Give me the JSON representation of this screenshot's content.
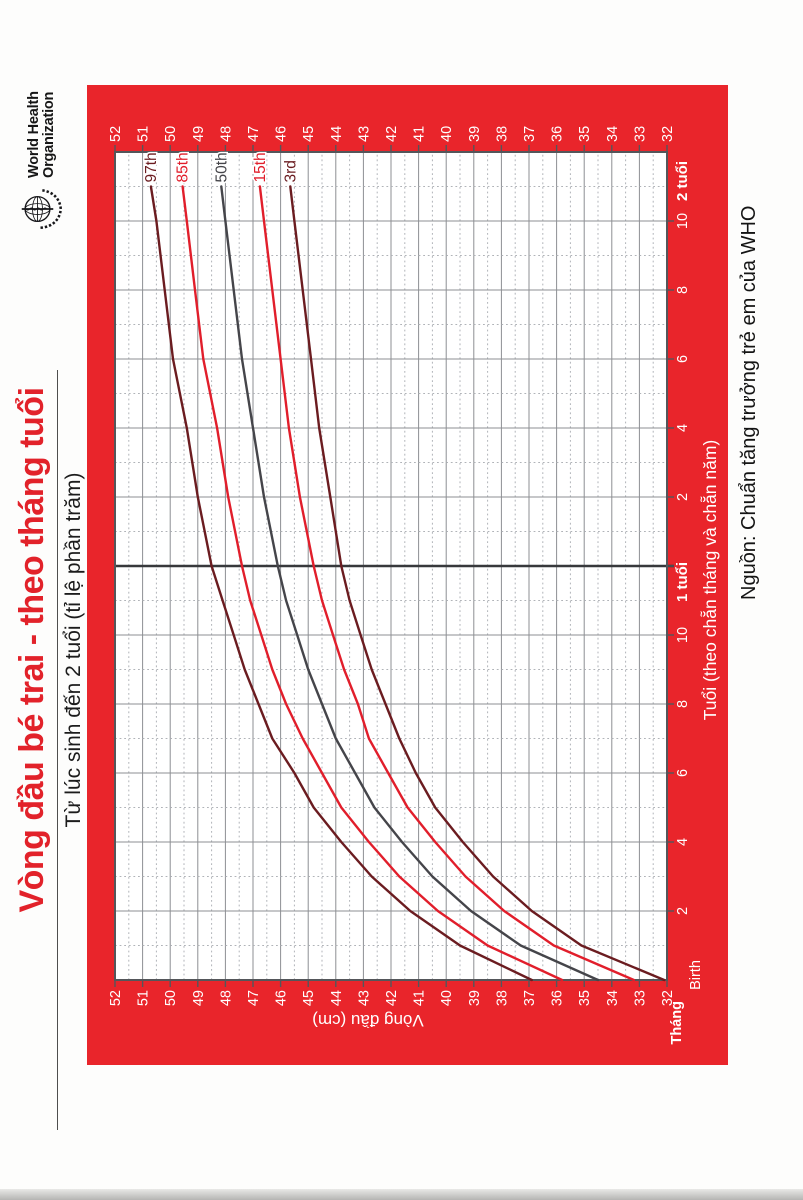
{
  "page": {
    "title": "Vòng đầu bé trai - theo tháng tuổi",
    "subtitle": "Từ lúc sinh đến 2 tuổi (tỉ lệ phần trăm)",
    "source_note": "Nguồn: Chuẩn tăng trưởng trẻ em của WHO",
    "logo": {
      "line1": "World Health",
      "line2": "Organization"
    }
  },
  "colors": {
    "frame_red": "#e9252b",
    "title_red": "#e2222a",
    "plot_bg": "#ffffff",
    "grid_solid": "#8d8f93",
    "grid_dotted": "#b0b3b8",
    "plot_border": "#54565a",
    "year_line": "#37383b",
    "tick_label": "#ffffff",
    "p97": "#6b1c20",
    "p85": "#e11e2b",
    "p50": "#45454a",
    "p15": "#e11e2b",
    "p3": "#6b1c20",
    "text_dark": "#1a1a1a"
  },
  "chart_data": {
    "type": "line",
    "title": "Vòng đầu bé trai - theo tháng tuổi",
    "subtitle": "Từ lúc sinh đến 2 tuổi (tỉ lệ phần trăm)",
    "xlabel": "Tuổi (theo chẵn tháng và chẵn năm)",
    "ylabel": "Vòng đầu (cm)",
    "x_unit_label": "Tháng",
    "xlim_months": [
      0,
      24
    ],
    "ylim_cm": [
      32,
      52
    ],
    "grid": "solid line every 1 cm, dotted every 0.5 cm; solid line every 2 months, dotted every odd month; heavy dark line at 12 months",
    "ytick_sides": "both",
    "yticks_cm": [
      52,
      51,
      50,
      49,
      48,
      47,
      46,
      45,
      44,
      43,
      42,
      41,
      40,
      39,
      38,
      37,
      36,
      35,
      34,
      33,
      32
    ],
    "xticks": [
      {
        "month": 0,
        "label": "Birth",
        "bold": false
      },
      {
        "month": 2,
        "label": "2",
        "bold": false
      },
      {
        "month": 4,
        "label": "4",
        "bold": false
      },
      {
        "month": 6,
        "label": "6",
        "bold": false
      },
      {
        "month": 8,
        "label": "8",
        "bold": false
      },
      {
        "month": 10,
        "label": "10",
        "bold": false
      },
      {
        "month": 12,
        "label": "1 tuổi",
        "bold": true
      },
      {
        "month": 14,
        "label": "2",
        "bold": false
      },
      {
        "month": 16,
        "label": "4",
        "bold": false
      },
      {
        "month": 18,
        "label": "6",
        "bold": false
      },
      {
        "month": 20,
        "label": "8",
        "bold": false
      },
      {
        "month": 22,
        "label": "10",
        "bold": false
      },
      {
        "month": 24,
        "label": "2 tuổi",
        "bold": true
      }
    ],
    "months": [
      0,
      1,
      2,
      3,
      4,
      5,
      6,
      7,
      8,
      9,
      10,
      11,
      12,
      14,
      16,
      18,
      20,
      22,
      24
    ],
    "series": [
      {
        "name": "97th",
        "color_key": "p97",
        "values": [
          36.9,
          39.5,
          41.3,
          42.7,
          43.8,
          44.8,
          45.5,
          46.3,
          46.8,
          47.3,
          47.7,
          48.1,
          48.5,
          49.0,
          49.4,
          49.9,
          50.2,
          50.5,
          50.9
        ]
      },
      {
        "name": "85th",
        "color_key": "p85",
        "values": [
          35.8,
          38.5,
          40.3,
          41.7,
          42.8,
          43.8,
          44.5,
          45.2,
          45.8,
          46.3,
          46.7,
          47.1,
          47.4,
          47.9,
          48.3,
          48.8,
          49.1,
          49.4,
          49.7
        ]
      },
      {
        "name": "50th",
        "color_key": "p50",
        "values": [
          34.5,
          37.3,
          39.1,
          40.5,
          41.6,
          42.6,
          43.3,
          44.0,
          44.5,
          45.0,
          45.4,
          45.8,
          46.1,
          46.6,
          47.0,
          47.4,
          47.7,
          48.0,
          48.3
        ]
      },
      {
        "name": "15th",
        "color_key": "p15",
        "values": [
          33.2,
          36.1,
          37.9,
          39.3,
          40.4,
          41.4,
          42.1,
          42.8,
          43.2,
          43.7,
          44.1,
          44.5,
          44.8,
          45.3,
          45.7,
          46.0,
          46.3,
          46.6,
          46.9
        ]
      },
      {
        "name": "3rd",
        "color_key": "p3",
        "values": [
          32.1,
          35.1,
          36.9,
          38.3,
          39.4,
          40.4,
          41.1,
          41.7,
          42.2,
          42.7,
          43.1,
          43.5,
          43.8,
          44.2,
          44.6,
          44.9,
          45.2,
          45.5,
          45.8
        ]
      }
    ],
    "legend_position": "labels at right end of each curve, inside plot"
  }
}
